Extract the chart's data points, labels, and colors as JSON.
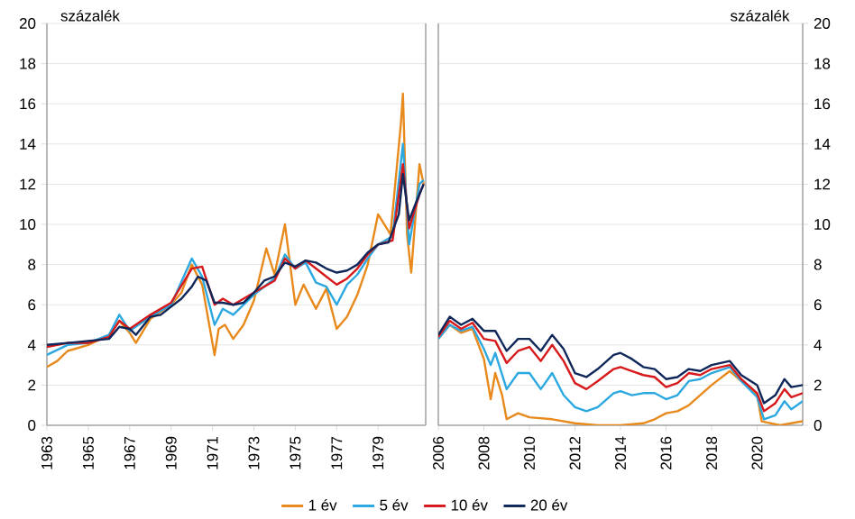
{
  "chart_data": [
    {
      "type": "line",
      "ylabel": "százalék",
      "xlim": [
        1963,
        1981.3
      ],
      "ylim": [
        0,
        20
      ],
      "xticks": [
        1963,
        1965,
        1967,
        1969,
        1971,
        1973,
        1975,
        1977,
        1979
      ],
      "yticks": [
        0,
        2,
        4,
        6,
        8,
        10,
        12,
        14,
        16,
        18,
        20
      ],
      "grid": "y",
      "legend": "bottom",
      "series": [
        {
          "name": "1 év",
          "color": "#e8891c",
          "x": [
            1963,
            1963.5,
            1964,
            1965,
            1966,
            1966.5,
            1967,
            1967.3,
            1968,
            1969,
            1969.5,
            1970,
            1970.5,
            1971.1,
            1971.3,
            1971.6,
            1972,
            1972.5,
            1973,
            1973.6,
            1974,
            1974.5,
            1975,
            1975.4,
            1976,
            1976.5,
            1977,
            1977.5,
            1978,
            1978.5,
            1979,
            1979.6,
            1980.1,
            1980.2,
            1980.4,
            1980.6,
            1981,
            1981.2
          ],
          "values": [
            2.9,
            3.2,
            3.7,
            4.0,
            4.5,
            5.2,
            4.6,
            4.1,
            5.3,
            6.0,
            6.6,
            8.0,
            7.0,
            3.5,
            4.8,
            5.0,
            4.3,
            5.0,
            6.2,
            8.8,
            7.5,
            10.0,
            6.0,
            7.0,
            5.8,
            6.8,
            4.8,
            5.4,
            6.5,
            8.0,
            10.5,
            9.5,
            15.0,
            16.5,
            9.5,
            7.6,
            13.0,
            12.0
          ]
        },
        {
          "name": "5 év",
          "color": "#2ca8e0",
          "x": [
            1963,
            1964,
            1965,
            1966,
            1966.5,
            1967,
            1968,
            1969,
            1970,
            1970.5,
            1971.1,
            1971.5,
            1972,
            1973,
            1974,
            1974.5,
            1975,
            1975.5,
            1976,
            1976.5,
            1977,
            1977.5,
            1978,
            1978.5,
            1979,
            1979.7,
            1980.2,
            1980.5,
            1981,
            1981.2
          ],
          "values": [
            3.5,
            4.0,
            4.1,
            4.5,
            5.5,
            4.7,
            5.4,
            6.0,
            8.3,
            7.4,
            5.0,
            5.8,
            5.5,
            6.5,
            7.3,
            8.5,
            7.8,
            8.1,
            7.1,
            6.9,
            6.0,
            7.0,
            7.5,
            8.3,
            9.0,
            9.4,
            14.0,
            9.0,
            12.0,
            12.2
          ]
        },
        {
          "name": "10 év",
          "color": "#d7191c",
          "x": [
            1963,
            1964,
            1965,
            1966,
            1966.5,
            1967,
            1968,
            1969,
            1970,
            1970.5,
            1971.1,
            1971.5,
            1972,
            1973,
            1974,
            1974.5,
            1975,
            1975.5,
            1976,
            1976.5,
            1977,
            1977.5,
            1978,
            1978.5,
            1979,
            1979.7,
            1980.2,
            1980.5,
            1981,
            1981.2
          ],
          "values": [
            3.9,
            4.1,
            4.1,
            4.4,
            5.2,
            4.8,
            5.5,
            6.1,
            7.8,
            7.9,
            6.0,
            6.3,
            6.0,
            6.6,
            7.2,
            8.3,
            7.8,
            8.2,
            7.8,
            7.4,
            7.0,
            7.3,
            7.8,
            8.5,
            9.0,
            9.2,
            13.0,
            9.8,
            11.5,
            12.0
          ]
        },
        {
          "name": "20 év",
          "color": "#10275a",
          "x": [
            1963,
            1964,
            1965,
            1966,
            1966.5,
            1967,
            1967.3,
            1968,
            1968.5,
            1969,
            1969.5,
            1970,
            1970.3,
            1970.7,
            1971.1,
            1971.5,
            1972,
            1972.5,
            1973,
            1973.5,
            1974,
            1974.5,
            1975,
            1975.5,
            1976,
            1976.5,
            1977,
            1977.5,
            1978,
            1978.5,
            1979,
            1979.5,
            1980,
            1980.2,
            1980.5,
            1980.8,
            1981.2
          ],
          "values": [
            4.0,
            4.1,
            4.2,
            4.3,
            4.9,
            4.8,
            4.5,
            5.4,
            5.5,
            5.9,
            6.3,
            6.9,
            7.4,
            7.2,
            6.1,
            6.1,
            6.0,
            6.1,
            6.6,
            7.2,
            7.4,
            8.1,
            7.9,
            8.2,
            8.1,
            7.8,
            7.6,
            7.7,
            8.0,
            8.6,
            9.0,
            9.1,
            10.5,
            12.5,
            10.2,
            11.0,
            12.0
          ]
        }
      ]
    },
    {
      "type": "line",
      "ylabel": "százalék",
      "xlim": [
        2006,
        2022
      ],
      "ylim": [
        0,
        20
      ],
      "xticks": [
        2006,
        2008,
        2010,
        2012,
        2014,
        2016,
        2018,
        2020
      ],
      "yticks": [
        0,
        2,
        4,
        6,
        8,
        10,
        12,
        14,
        16,
        18,
        20
      ],
      "grid": "y",
      "series": [
        {
          "color": "#e8891c",
          "x": [
            2006,
            2006.5,
            2007,
            2007.5,
            2008,
            2008.3,
            2008.5,
            2008.8,
            2009,
            2009.5,
            2010,
            2011,
            2012,
            2013,
            2014,
            2015,
            2015.5,
            2016,
            2016.5,
            2017,
            2017.5,
            2018,
            2018.8,
            2019.3,
            2020,
            2020.2,
            2021,
            2022
          ],
          "values": [
            4.3,
            5.0,
            4.6,
            4.8,
            3.3,
            1.3,
            2.6,
            1.5,
            0.3,
            0.6,
            0.4,
            0.3,
            0.1,
            0.0,
            0.0,
            0.1,
            0.3,
            0.6,
            0.7,
            1.0,
            1.5,
            2.0,
            2.7,
            2.2,
            1.5,
            0.2,
            0.0,
            0.2
          ]
        },
        {
          "color": "#2ca8e0",
          "x": [
            2006,
            2006.5,
            2007,
            2007.5,
            2008,
            2008.3,
            2008.5,
            2009,
            2009.5,
            2010,
            2010.5,
            2011,
            2011.5,
            2012,
            2012.5,
            2013,
            2013.7,
            2014,
            2014.5,
            2015,
            2015.5,
            2016,
            2016.5,
            2017,
            2017.5,
            2018,
            2018.8,
            2019.3,
            2020,
            2020.3,
            2020.8,
            2021.2,
            2021.5,
            2022
          ],
          "values": [
            4.3,
            5.0,
            4.7,
            4.9,
            3.8,
            3.0,
            3.6,
            1.8,
            2.6,
            2.6,
            1.8,
            2.6,
            1.5,
            0.9,
            0.7,
            0.9,
            1.6,
            1.7,
            1.5,
            1.6,
            1.6,
            1.3,
            1.5,
            2.2,
            2.3,
            2.6,
            2.9,
            2.2,
            1.4,
            0.3,
            0.5,
            1.2,
            0.8,
            1.2
          ]
        },
        {
          "color": "#d7191c",
          "x": [
            2006,
            2006.5,
            2007,
            2007.5,
            2008,
            2008.5,
            2009,
            2009.5,
            2010,
            2010.5,
            2011,
            2011.5,
            2012,
            2012.5,
            2013,
            2013.7,
            2014,
            2014.5,
            2015,
            2015.5,
            2016,
            2016.5,
            2017,
            2017.5,
            2018,
            2018.8,
            2019.3,
            2020,
            2020.3,
            2020.8,
            2021.2,
            2021.5,
            2022
          ],
          "values": [
            4.4,
            5.2,
            4.8,
            5.1,
            4.3,
            4.2,
            3.1,
            3.7,
            3.9,
            3.2,
            4.0,
            3.2,
            2.1,
            1.8,
            2.2,
            2.8,
            2.9,
            2.7,
            2.5,
            2.4,
            1.9,
            2.1,
            2.6,
            2.5,
            2.8,
            3.0,
            2.3,
            1.6,
            0.7,
            1.1,
            1.8,
            1.4,
            1.6
          ]
        },
        {
          "color": "#10275a",
          "x": [
            2006,
            2006.5,
            2007,
            2007.5,
            2008,
            2008.5,
            2009,
            2009.5,
            2010,
            2010.5,
            2011,
            2011.5,
            2012,
            2012.5,
            2013,
            2013.7,
            2014,
            2014.5,
            2015,
            2015.5,
            2016,
            2016.5,
            2017,
            2017.5,
            2018,
            2018.8,
            2019.3,
            2020,
            2020.3,
            2020.8,
            2021.2,
            2021.5,
            2022
          ],
          "values": [
            4.5,
            5.4,
            5.0,
            5.3,
            4.7,
            4.7,
            3.7,
            4.3,
            4.3,
            3.7,
            4.5,
            3.8,
            2.6,
            2.4,
            2.8,
            3.5,
            3.6,
            3.3,
            2.9,
            2.8,
            2.3,
            2.4,
            2.8,
            2.7,
            3.0,
            3.2,
            2.5,
            2.0,
            1.1,
            1.5,
            2.3,
            1.9,
            2.0
          ]
        }
      ]
    }
  ]
}
